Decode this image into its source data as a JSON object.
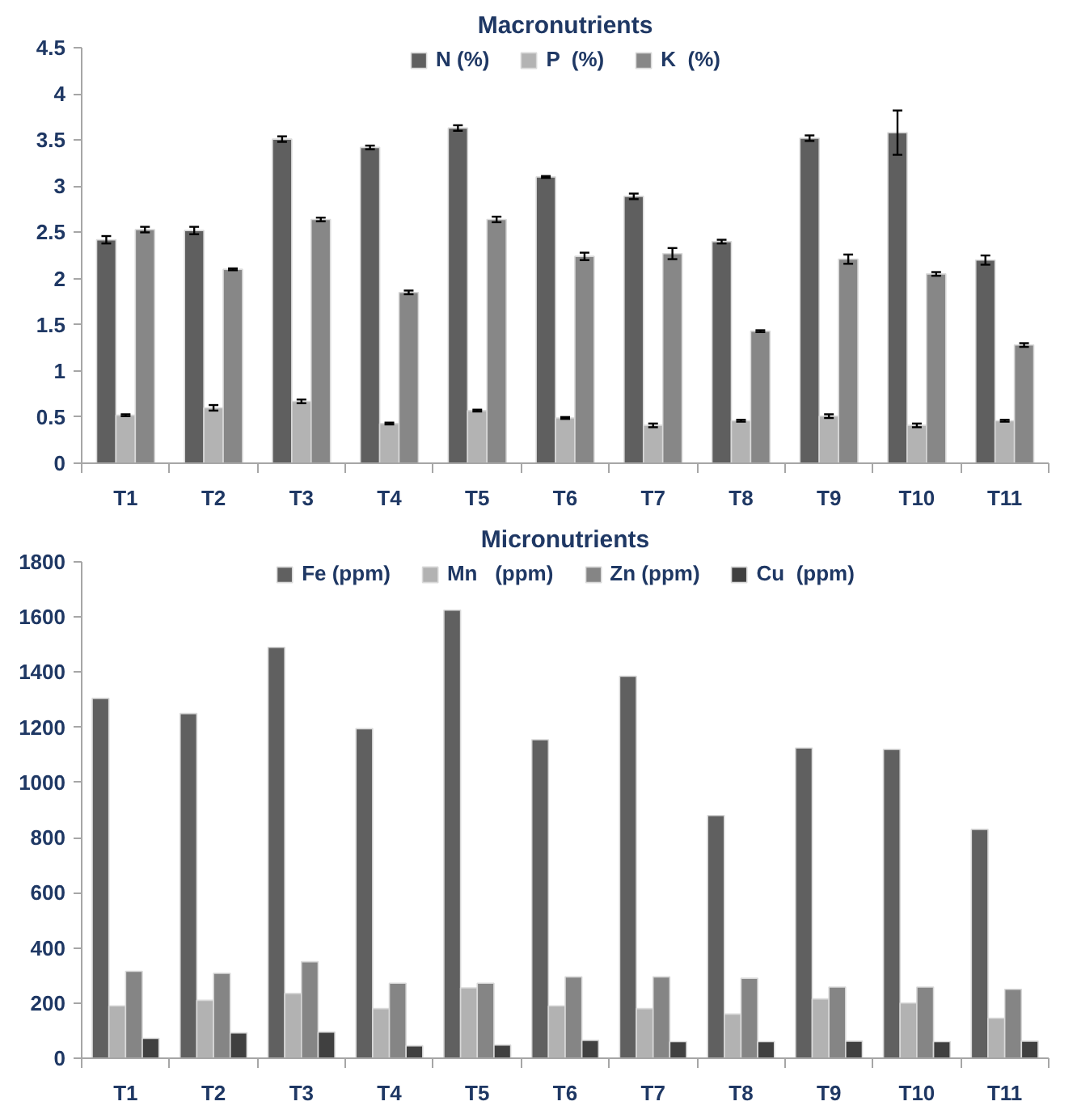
{
  "chart_data": [
    {
      "type": "bar",
      "title": "Macronutrients",
      "categories": [
        "T1",
        "T2",
        "T3",
        "T4",
        "T5",
        "T6",
        "T7",
        "T8",
        "T9",
        "T10",
        "T11"
      ],
      "series": [
        {
          "name": "N (%)",
          "color": "#5f5f5f",
          "values": [
            2.42,
            2.52,
            3.51,
            3.42,
            3.63,
            3.1,
            2.89,
            2.4,
            3.52,
            3.58,
            2.2
          ],
          "errors": [
            0.04,
            0.04,
            0.03,
            0.02,
            0.03,
            0.01,
            0.03,
            0.02,
            0.03,
            0.24,
            0.05
          ]
        },
        {
          "name": "P  (%)",
          "color": "#b3b3b3",
          "values": [
            0.52,
            0.6,
            0.67,
            0.43,
            0.57,
            0.49,
            0.41,
            0.46,
            0.51,
            0.41,
            0.46
          ],
          "errors": [
            0.01,
            0.03,
            0.02,
            0.01,
            0.01,
            0.01,
            0.02,
            0.01,
            0.02,
            0.02,
            0.01
          ]
        },
        {
          "name": "K  (%)",
          "color": "#878787",
          "values": [
            2.53,
            2.1,
            2.64,
            1.85,
            2.64,
            2.24,
            2.27,
            1.43,
            2.21,
            2.05,
            1.28
          ],
          "errors": [
            0.03,
            0.01,
            0.02,
            0.02,
            0.03,
            0.04,
            0.06,
            0.01,
            0.05,
            0.02,
            0.02
          ]
        }
      ],
      "ylim": [
        0,
        4.5
      ],
      "yticks": [
        0,
        0.5,
        1,
        1.5,
        2,
        2.5,
        3,
        3.5,
        4,
        4.5
      ],
      "grid": false,
      "legend": "top"
    },
    {
      "type": "bar",
      "title": "Micronutrients",
      "categories": [
        "T1",
        "T2",
        "T3",
        "T4",
        "T5",
        "T6",
        "T7",
        "T8",
        "T9",
        "T10",
        "T11"
      ],
      "series": [
        {
          "name": "Fe (ppm)",
          "color": "#606060",
          "values": [
            1305,
            1250,
            1490,
            1195,
            1625,
            1155,
            1385,
            880,
            1125,
            1120,
            830
          ]
        },
        {
          "name": "Mn   (ppm)",
          "color": "#b2b2b2",
          "values": [
            190,
            210,
            235,
            180,
            255,
            190,
            180,
            160,
            215,
            200,
            145
          ]
        },
        {
          "name": "Zn (ppm)",
          "color": "#858585",
          "values": [
            315,
            308,
            350,
            272,
            272,
            295,
            295,
            290,
            258,
            258,
            250
          ]
        },
        {
          "name": "Cu  (ppm)",
          "color": "#404040",
          "values": [
            72,
            92,
            95,
            45,
            48,
            65,
            60,
            60,
            62,
            60,
            62
          ]
        }
      ],
      "ylim": [
        0,
        1800
      ],
      "yticks": [
        0,
        200,
        400,
        600,
        800,
        1000,
        1200,
        1400,
        1600,
        1800
      ],
      "grid": false,
      "legend": "top"
    }
  ]
}
